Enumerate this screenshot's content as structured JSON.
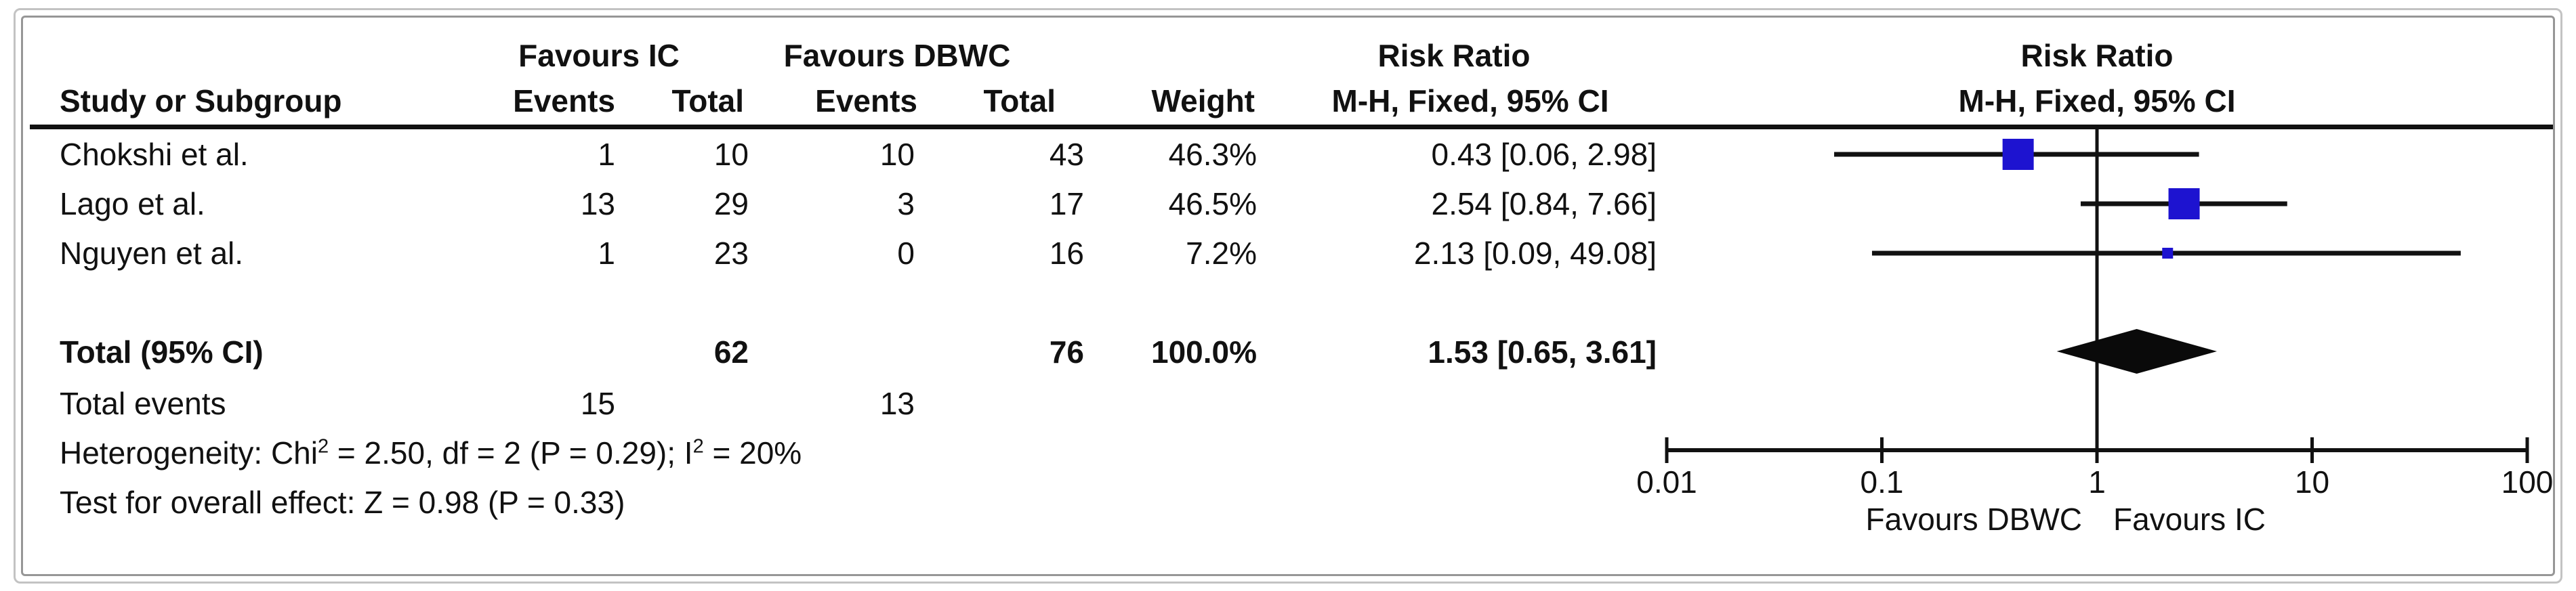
{
  "table": {
    "group_headers": {
      "favours_ic": "Favours IC",
      "favours_dbwc": "Favours DBWC",
      "risk_ratio_left": "Risk Ratio",
      "risk_ratio_right": "Risk Ratio"
    },
    "col_headers": {
      "study": "Study or Subgroup",
      "events_ic": "Events",
      "total_ic": "Total",
      "events_dbwc": "Events",
      "total_dbwc": "Total",
      "weight": "Weight",
      "mh_left": "M-H, Fixed, 95% CI",
      "mh_right": "M-H, Fixed, 95% CI"
    },
    "studies": [
      {
        "name": "Chokshi et al.",
        "events_ic": "1",
        "total_ic": "10",
        "events_dbwc": "10",
        "total_dbwc": "43",
        "weight": "46.3%",
        "ci": "0.43 [0.06, 2.98]"
      },
      {
        "name": "Lago et al.",
        "events_ic": "13",
        "total_ic": "29",
        "events_dbwc": "3",
        "total_dbwc": "17",
        "weight": "46.5%",
        "ci": "2.54 [0.84, 7.66]"
      },
      {
        "name": "Nguyen et al.",
        "events_ic": "1",
        "total_ic": "23",
        "events_dbwc": "0",
        "total_dbwc": "16",
        "weight": "7.2%",
        "ci": "2.13 [0.09, 49.08]"
      }
    ],
    "total_row": {
      "label": "Total (95% CI)",
      "total_ic": "62",
      "total_dbwc": "76",
      "weight": "100.0%",
      "ci": "1.53 [0.65, 3.61]"
    },
    "total_events": {
      "label": "Total events",
      "ic": "15",
      "dbwc": "13"
    },
    "heterogeneity": {
      "p1": "Heterogeneity: Chi",
      "s1": "2",
      "p2": " = 2.50, df = 2 (P = 0.29); I",
      "s2": "2",
      "p3": " = 20%"
    },
    "overall_effect": "Test for overall effect: Z = 0.98 (P = 0.33)"
  },
  "chart_data": {
    "type": "forest",
    "effect_measure": "Risk Ratio",
    "model": "M-H, Fixed, 95% CI",
    "x_scale": "log10",
    "axis_range": [
      0.01,
      100
    ],
    "axis_ticks": [
      0.01,
      0.1,
      1,
      10,
      100
    ],
    "axis_tick_labels": [
      "0.01",
      "0.1",
      "1",
      "10",
      "100"
    ],
    "null_line_value": 1,
    "studies": [
      {
        "name": "Chokshi et al.",
        "rr": 0.43,
        "ci_low": 0.06,
        "ci_high": 2.98,
        "weight_pct": 46.3
      },
      {
        "name": "Lago et al.",
        "rr": 2.54,
        "ci_low": 0.84,
        "ci_high": 7.66,
        "weight_pct": 46.5
      },
      {
        "name": "Nguyen et al.",
        "rr": 2.13,
        "ci_low": 0.09,
        "ci_high": 49.08,
        "weight_pct": 7.2
      }
    ],
    "total": {
      "rr": 1.53,
      "ci_low": 0.65,
      "ci_high": 3.61,
      "weight_pct": 100.0
    },
    "heterogeneity": {
      "chi2": 2.5,
      "df": 2,
      "p": 0.29,
      "i2_pct": 20
    },
    "overall_effect": {
      "z": 0.98,
      "p": 0.33
    },
    "x_axis_labels": {
      "left": "Favours DBWC",
      "right": "Favours IC"
    },
    "marker_color": "#1d13d0",
    "diamond_color": "#0a0a0a",
    "line_color": "#111111",
    "legend_position": "none",
    "grid": false
  }
}
